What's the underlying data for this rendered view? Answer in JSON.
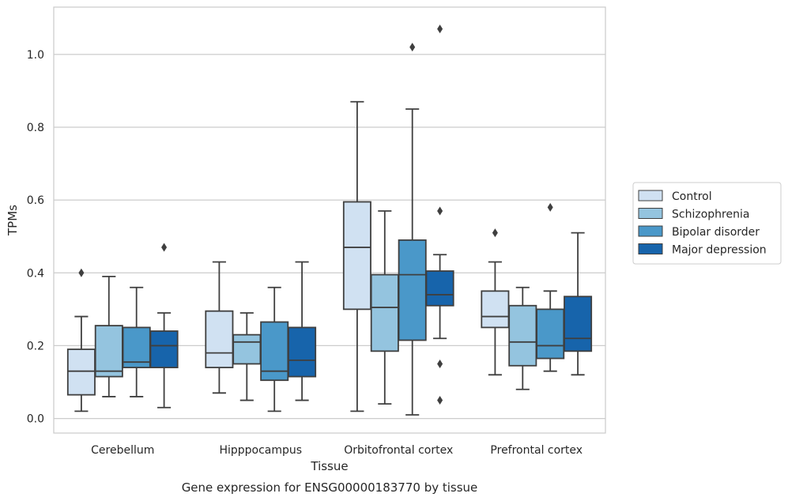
{
  "chart_data": {
    "type": "box",
    "title": "",
    "xlabel": "Tissue",
    "ylabel": "TPMs",
    "caption": "Gene expression for ENSG00000183770 by tissue",
    "ylim": [
      -0.04,
      1.13
    ],
    "yticks": [
      "0.0",
      "0.2",
      "0.4",
      "0.6",
      "0.8",
      "1.0"
    ],
    "yticks_values": [
      0.0,
      0.2,
      0.4,
      0.6,
      0.8,
      1.0
    ],
    "grid": "horizontal",
    "legend_position": "right",
    "categories": [
      "Cerebellum",
      "Hipppocampus",
      "Orbitofrontal cortex",
      "Prefrontal cortex"
    ],
    "series": [
      {
        "name": "Control",
        "color": "#d0e1f2",
        "boxes": [
          {
            "whislo": 0.02,
            "q1": 0.065,
            "med": 0.13,
            "q3": 0.19,
            "whishi": 0.28,
            "fliers": [
              0.4
            ]
          },
          {
            "whislo": 0.07,
            "q1": 0.14,
            "med": 0.18,
            "q3": 0.295,
            "whishi": 0.43,
            "fliers": []
          },
          {
            "whislo": 0.02,
            "q1": 0.3,
            "med": 0.47,
            "q3": 0.595,
            "whishi": 0.87,
            "fliers": []
          },
          {
            "whislo": 0.12,
            "q1": 0.25,
            "med": 0.28,
            "q3": 0.35,
            "whishi": 0.43,
            "fliers": [
              0.51
            ]
          }
        ]
      },
      {
        "name": "Schizophrenia",
        "color": "#94c4df",
        "boxes": [
          {
            "whislo": 0.06,
            "q1": 0.115,
            "med": 0.13,
            "q3": 0.255,
            "whishi": 0.39,
            "fliers": []
          },
          {
            "whislo": 0.05,
            "q1": 0.15,
            "med": 0.21,
            "q3": 0.23,
            "whishi": 0.29,
            "fliers": []
          },
          {
            "whislo": 0.04,
            "q1": 0.185,
            "med": 0.305,
            "q3": 0.395,
            "whishi": 0.57,
            "fliers": []
          },
          {
            "whislo": 0.08,
            "q1": 0.145,
            "med": 0.21,
            "q3": 0.31,
            "whishi": 0.36,
            "fliers": []
          }
        ]
      },
      {
        "name": "Bipolar disorder",
        "color": "#4a98c9",
        "boxes": [
          {
            "whislo": 0.06,
            "q1": 0.14,
            "med": 0.155,
            "q3": 0.25,
            "whishi": 0.36,
            "fliers": []
          },
          {
            "whislo": 0.02,
            "q1": 0.105,
            "med": 0.13,
            "q3": 0.265,
            "whishi": 0.36,
            "fliers": []
          },
          {
            "whislo": 0.01,
            "q1": 0.215,
            "med": 0.395,
            "q3": 0.49,
            "whishi": 0.85,
            "fliers": [
              1.02
            ]
          },
          {
            "whislo": 0.13,
            "q1": 0.165,
            "med": 0.2,
            "q3": 0.3,
            "whishi": 0.35,
            "fliers": [
              0.58
            ]
          }
        ]
      },
      {
        "name": "Major depression",
        "color": "#1764ab",
        "boxes": [
          {
            "whislo": 0.03,
            "q1": 0.14,
            "med": 0.2,
            "q3": 0.24,
            "whishi": 0.29,
            "fliers": [
              0.47
            ]
          },
          {
            "whislo": 0.05,
            "q1": 0.115,
            "med": 0.16,
            "q3": 0.25,
            "whishi": 0.43,
            "fliers": []
          },
          {
            "whislo": 0.22,
            "q1": 0.31,
            "med": 0.34,
            "q3": 0.405,
            "whishi": 0.45,
            "fliers": [
              0.57,
              0.15,
              0.05,
              1.07
            ]
          },
          {
            "whislo": 0.12,
            "q1": 0.185,
            "med": 0.22,
            "q3": 0.335,
            "whishi": 0.51,
            "fliers": []
          }
        ]
      }
    ]
  }
}
